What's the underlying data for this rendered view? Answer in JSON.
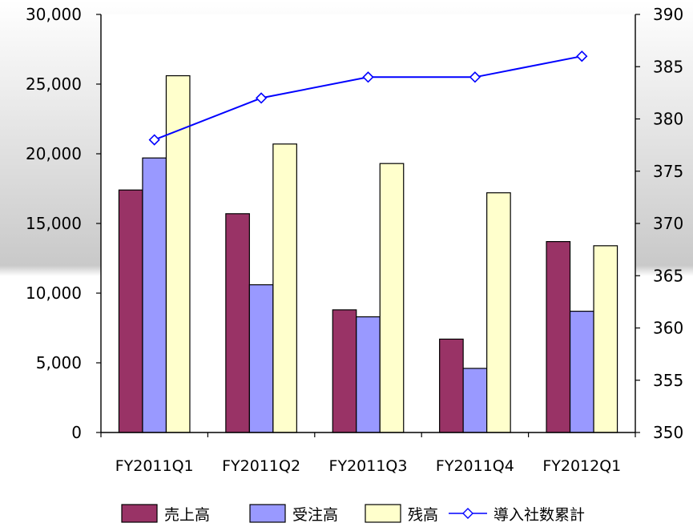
{
  "chart_data": {
    "type": "bar",
    "categories": [
      "FY2011Q1",
      "FY2011Q2",
      "FY2011Q3",
      "FY2011Q4",
      "FY2012Q1"
    ],
    "series": [
      {
        "name": "売上高",
        "kind": "bar",
        "axis": "left",
        "color": "#993366",
        "values": [
          17400,
          15700,
          8800,
          6700,
          13700
        ]
      },
      {
        "name": "受注高",
        "kind": "bar",
        "axis": "left",
        "color": "#9999FF",
        "values": [
          19700,
          10600,
          8300,
          4600,
          8700
        ]
      },
      {
        "name": "残高",
        "kind": "bar",
        "axis": "left",
        "color": "#FFFFCC",
        "values": [
          25600,
          20700,
          19300,
          17200,
          13400
        ]
      },
      {
        "name": "導入社数累計",
        "kind": "line",
        "axis": "right",
        "color": "#0000FF",
        "marker": "diamond-open",
        "values": [
          378,
          382,
          384,
          384,
          386
        ]
      }
    ],
    "y_left": {
      "lim": [
        0,
        30000
      ],
      "ticks": [
        "0",
        "5,000",
        "10,000",
        "15,000",
        "20,000",
        "25,000",
        "30,000"
      ]
    },
    "y_right": {
      "lim": [
        350,
        390
      ],
      "ticks": [
        "350",
        "355",
        "360",
        "365",
        "370",
        "375",
        "380",
        "385",
        "390"
      ]
    },
    "title": "",
    "xlabel": "",
    "ylabel": "",
    "legend_position": "bottom",
    "grid": false,
    "background": "white-gray gradient"
  }
}
